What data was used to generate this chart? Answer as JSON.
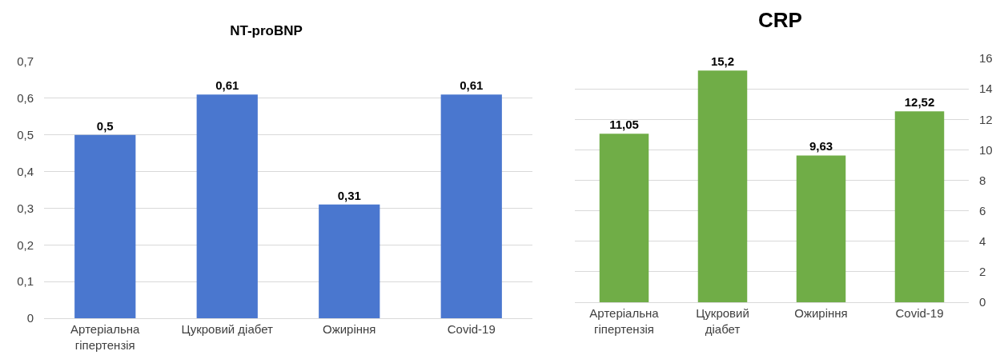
{
  "chart_data": [
    {
      "type": "bar",
      "title": "NT-proBNP",
      "categories": [
        "Артеріальна\nгіпертензія",
        "Цукровий діабет",
        "Ожиріння",
        "Covid-19"
      ],
      "series": [
        {
          "color": "#4a77cf",
          "values": [
            0.5,
            0.61,
            0.31,
            0.61
          ],
          "value_labels": [
            "0,5",
            "0,61",
            "0,31",
            "0,61"
          ]
        }
      ],
      "ylim": [
        0,
        0.7
      ],
      "yticks": [
        0,
        {
          "value": 0.1,
          "label": "0,1"
        },
        {
          "value": 0.2,
          "label": "0,2"
        },
        {
          "value": 0.3,
          "label": "0,3"
        },
        {
          "value": 0.4,
          "label": "0,4"
        },
        {
          "value": 0.5,
          "label": "0,5"
        },
        {
          "value": 0.6,
          "label": "0,6"
        },
        {
          "value": 0.7,
          "label": "0,7"
        }
      ],
      "grid": true
    },
    {
      "type": "bar",
      "title": "CRP",
      "categories": [
        "Артеріальна\nгіпертензія",
        "Цукровий\nдіабет",
        "Ожиріння",
        "Covid-19"
      ],
      "series": [
        {
          "color": "#70ad47",
          "axis": "y2",
          "values": [
            11.05,
            15.2,
            9.63,
            12.52
          ],
          "value_labels": [
            "11,05",
            "15,2",
            "9,63",
            "12,52"
          ]
        }
      ],
      "y2lim": [
        0,
        16
      ],
      "y2ticks": [
        0,
        2,
        4,
        6,
        8,
        10,
        12,
        14,
        16
      ],
      "grid": true
    }
  ]
}
